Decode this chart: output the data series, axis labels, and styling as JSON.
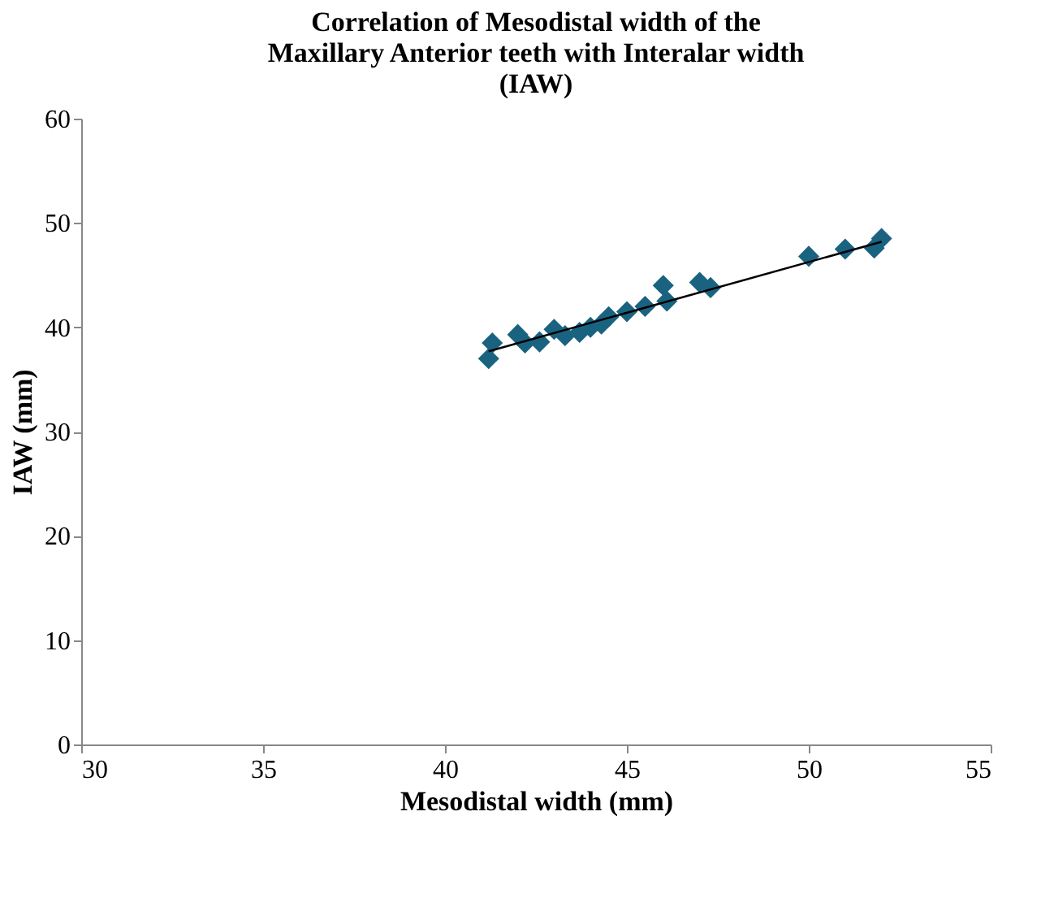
{
  "chart_data": {
    "type": "scatter",
    "title": "Correlation of  Mesodistal width of the Maxillary Anterior teeth with Interalar width (IAW)",
    "xlabel": "Mesodistal width (mm)",
    "ylabel": "IAW (mm)",
    "xlim": [
      30,
      55
    ],
    "xticks": [
      30,
      35,
      40,
      45,
      50,
      55
    ],
    "ylim": [
      0,
      60
    ],
    "yticks": [
      0,
      10,
      20,
      30,
      40,
      50,
      60
    ],
    "grid": false,
    "marker": "diamond",
    "series": [
      {
        "color": "#1a6380",
        "x": [
          41.2,
          41.3,
          42,
          42.2,
          42.6,
          43,
          43.3,
          43.7,
          44,
          44.3,
          44.5,
          45,
          45.5,
          46,
          46.1,
          47,
          47.3,
          50,
          51,
          51.8,
          52
        ],
        "values": [
          37,
          38.5,
          39.3,
          38.5,
          38.6,
          39.8,
          39.2,
          39.5,
          40,
          40.3,
          41,
          41.5,
          42,
          44,
          42.5,
          44.3,
          43.8,
          46.8,
          47.5,
          47.6,
          48.5
        ]
      },
      {
        "type": "line",
        "color": "#000000",
        "x": [
          41.2,
          52
        ],
        "values": [
          37.7,
          48.2
        ],
        "marker": "none",
        "line_style": "solid"
      }
    ]
  }
}
